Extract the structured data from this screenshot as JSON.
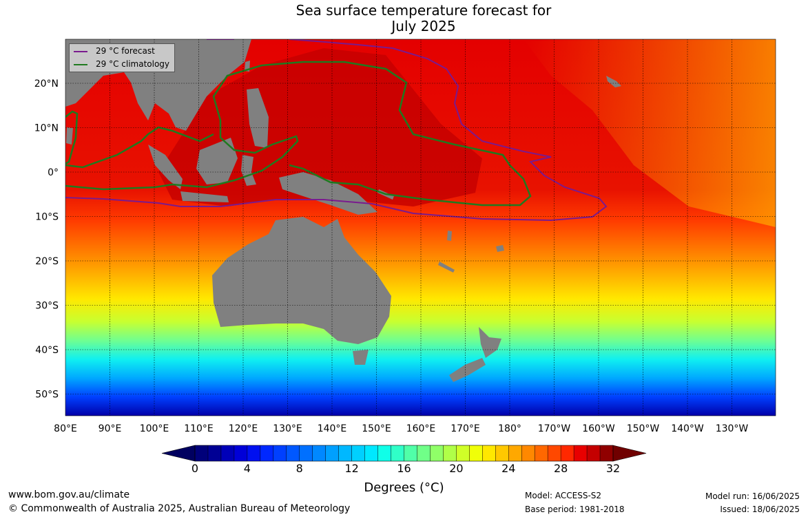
{
  "title_line1": "Sea surface temperature forecast for",
  "title_line2": "July 2025",
  "legend": {
    "forecast": {
      "label": "29 °C  forecast",
      "color": "#7a1a8e"
    },
    "climatology": {
      "label": "29 °C  climatology",
      "color": "#1f7a1f"
    }
  },
  "lat_labels": [
    "20°N",
    "10°N",
    "0°",
    "10°S",
    "20°S",
    "30°S",
    "40°S",
    "50°S"
  ],
  "lon_labels": [
    "80°E",
    "90°E",
    "100°E",
    "110°E",
    "120°E",
    "130°E",
    "140°E",
    "150°E",
    "160°E",
    "170°E",
    "180°",
    "170°W",
    "160°W",
    "150°W",
    "140°W",
    "130°W"
  ],
  "colorbar": {
    "ticks": [
      "0",
      "4",
      "8",
      "12",
      "16",
      "20",
      "24",
      "28",
      "32"
    ],
    "label": "Degrees (°C)",
    "colors": [
      "#00007a",
      "#000094",
      "#0000b8",
      "#0000d8",
      "#0010f0",
      "#0028ff",
      "#0040ff",
      "#0058ff",
      "#0070ff",
      "#0088ff",
      "#00a0ff",
      "#00b8ff",
      "#00d0ff",
      "#00e8ff",
      "#10ffe8",
      "#30ffc8",
      "#50ffa8",
      "#70ff88",
      "#90ff68",
      "#b0ff48",
      "#d0ff28",
      "#f0ff08",
      "#ffe800",
      "#ffc800",
      "#ffa800",
      "#ff8800",
      "#ff6800",
      "#ff4800",
      "#ff2800",
      "#e80000",
      "#c40000",
      "#900000"
    ],
    "under_color": "#000060",
    "over_color": "#700000"
  },
  "footer": {
    "website": "www.bom.gov.au/climate",
    "copyright": "© Commonwealth of Australia 2025, Australian Bureau of Meteorology",
    "model": "Model: ACCESS-S2",
    "base_period": "Base period: 1981-2018",
    "model_run": "Model run: 16/06/2025",
    "issued": "Issued: 18/06/2025"
  }
}
